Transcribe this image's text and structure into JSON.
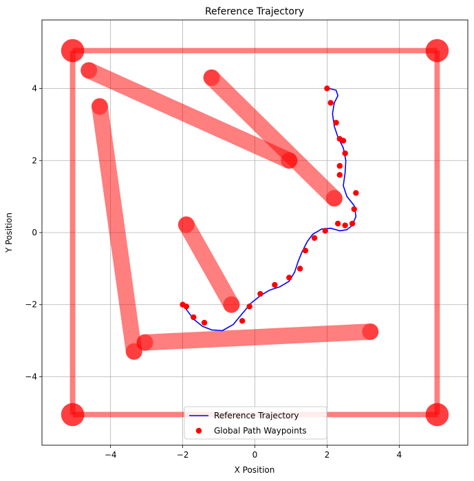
{
  "chart_data": {
    "type": "line",
    "title": "Reference Trajectory",
    "xlabel": "X Position",
    "ylabel": "Y Position",
    "xlim": [
      -5.9,
      5.9
    ],
    "ylim": [
      -5.9,
      5.9
    ],
    "xticks": [
      -4,
      -2,
      0,
      2,
      4
    ],
    "yticks": [
      -4,
      -2,
      0,
      2,
      4
    ],
    "grid": true,
    "legend_position": "lower center",
    "obstacle_color": "#ff0000",
    "obstacle_alpha": 0.5,
    "trajectory_color": "#0000ff",
    "waypoint_color": "#ff0000",
    "obstacles": [
      {
        "from": [
          -5.05,
          5.05
        ],
        "to": [
          5.05,
          5.05
        ],
        "kind": "wall"
      },
      {
        "from": [
          5.05,
          5.05
        ],
        "to": [
          5.05,
          -5.05
        ],
        "kind": "wall"
      },
      {
        "from": [
          5.05,
          -5.05
        ],
        "to": [
          -5.05,
          -5.05
        ],
        "kind": "wall"
      },
      {
        "from": [
          -5.05,
          -5.05
        ],
        "to": [
          -5.05,
          5.05
        ],
        "kind": "wall"
      },
      {
        "from": [
          -4.6,
          4.5
        ],
        "to": [
          0.95,
          2.0
        ],
        "kind": "bar"
      },
      {
        "from": [
          -1.2,
          4.3
        ],
        "to": [
          2.2,
          0.95
        ],
        "kind": "bar"
      },
      {
        "from": [
          -4.3,
          3.5
        ],
        "to": [
          -3.35,
          -3.3
        ],
        "kind": "bar"
      },
      {
        "from": [
          -1.9,
          0.22
        ],
        "to": [
          -0.65,
          -2.0
        ],
        "kind": "bar"
      },
      {
        "from": [
          -3.05,
          -3.05
        ],
        "to": [
          3.2,
          -2.75
        ],
        "kind": "bar"
      }
    ],
    "series": [
      {
        "name": "Reference Trajectory",
        "type": "line",
        "points": [
          [
            -2.0,
            -2.0
          ],
          [
            -1.85,
            -2.2
          ],
          [
            -1.7,
            -2.4
          ],
          [
            -1.45,
            -2.6
          ],
          [
            -1.2,
            -2.7
          ],
          [
            -0.9,
            -2.72
          ],
          [
            -0.6,
            -2.55
          ],
          [
            -0.35,
            -2.25
          ],
          [
            -0.1,
            -1.95
          ],
          [
            0.15,
            -1.75
          ],
          [
            0.4,
            -1.6
          ],
          [
            0.7,
            -1.5
          ],
          [
            0.95,
            -1.35
          ],
          [
            1.1,
            -1.1
          ],
          [
            1.2,
            -0.8
          ],
          [
            1.3,
            -0.55
          ],
          [
            1.45,
            -0.25
          ],
          [
            1.6,
            -0.05
          ],
          [
            1.85,
            0.1
          ],
          [
            2.1,
            0.12
          ],
          [
            2.35,
            0.05
          ],
          [
            2.55,
            0.08
          ],
          [
            2.7,
            0.2
          ],
          [
            2.8,
            0.45
          ],
          [
            2.75,
            0.75
          ],
          [
            2.55,
            1.0
          ],
          [
            2.45,
            1.3
          ],
          [
            2.5,
            1.65
          ],
          [
            2.52,
            2.0
          ],
          [
            2.45,
            2.35
          ],
          [
            2.3,
            2.65
          ],
          [
            2.2,
            2.95
          ],
          [
            2.15,
            3.3
          ],
          [
            2.2,
            3.6
          ],
          [
            2.3,
            3.8
          ],
          [
            2.25,
            3.95
          ],
          [
            2.05,
            4.0
          ]
        ]
      },
      {
        "name": "Global Path Waypoints",
        "type": "scatter",
        "points": [
          [
            2.0,
            4.0
          ],
          [
            2.1,
            3.6
          ],
          [
            2.25,
            3.05
          ],
          [
            2.35,
            2.6
          ],
          [
            2.45,
            2.55
          ],
          [
            2.5,
            2.2
          ],
          [
            2.35,
            1.85
          ],
          [
            2.35,
            1.6
          ],
          [
            2.8,
            1.1
          ],
          [
            2.75,
            0.65
          ],
          [
            2.7,
            0.25
          ],
          [
            2.5,
            0.2
          ],
          [
            2.3,
            0.25
          ],
          [
            1.95,
            0.05
          ],
          [
            1.65,
            -0.15
          ],
          [
            1.4,
            -0.5
          ],
          [
            1.25,
            -1.0
          ],
          [
            0.95,
            -1.25
          ],
          [
            0.55,
            -1.45
          ],
          [
            0.15,
            -1.7
          ],
          [
            -0.15,
            -2.05
          ],
          [
            -0.35,
            -2.45
          ],
          [
            -1.4,
            -2.5
          ],
          [
            -1.7,
            -2.35
          ],
          [
            -1.9,
            -2.05
          ],
          [
            -2.0,
            -2.0
          ]
        ]
      }
    ]
  }
}
